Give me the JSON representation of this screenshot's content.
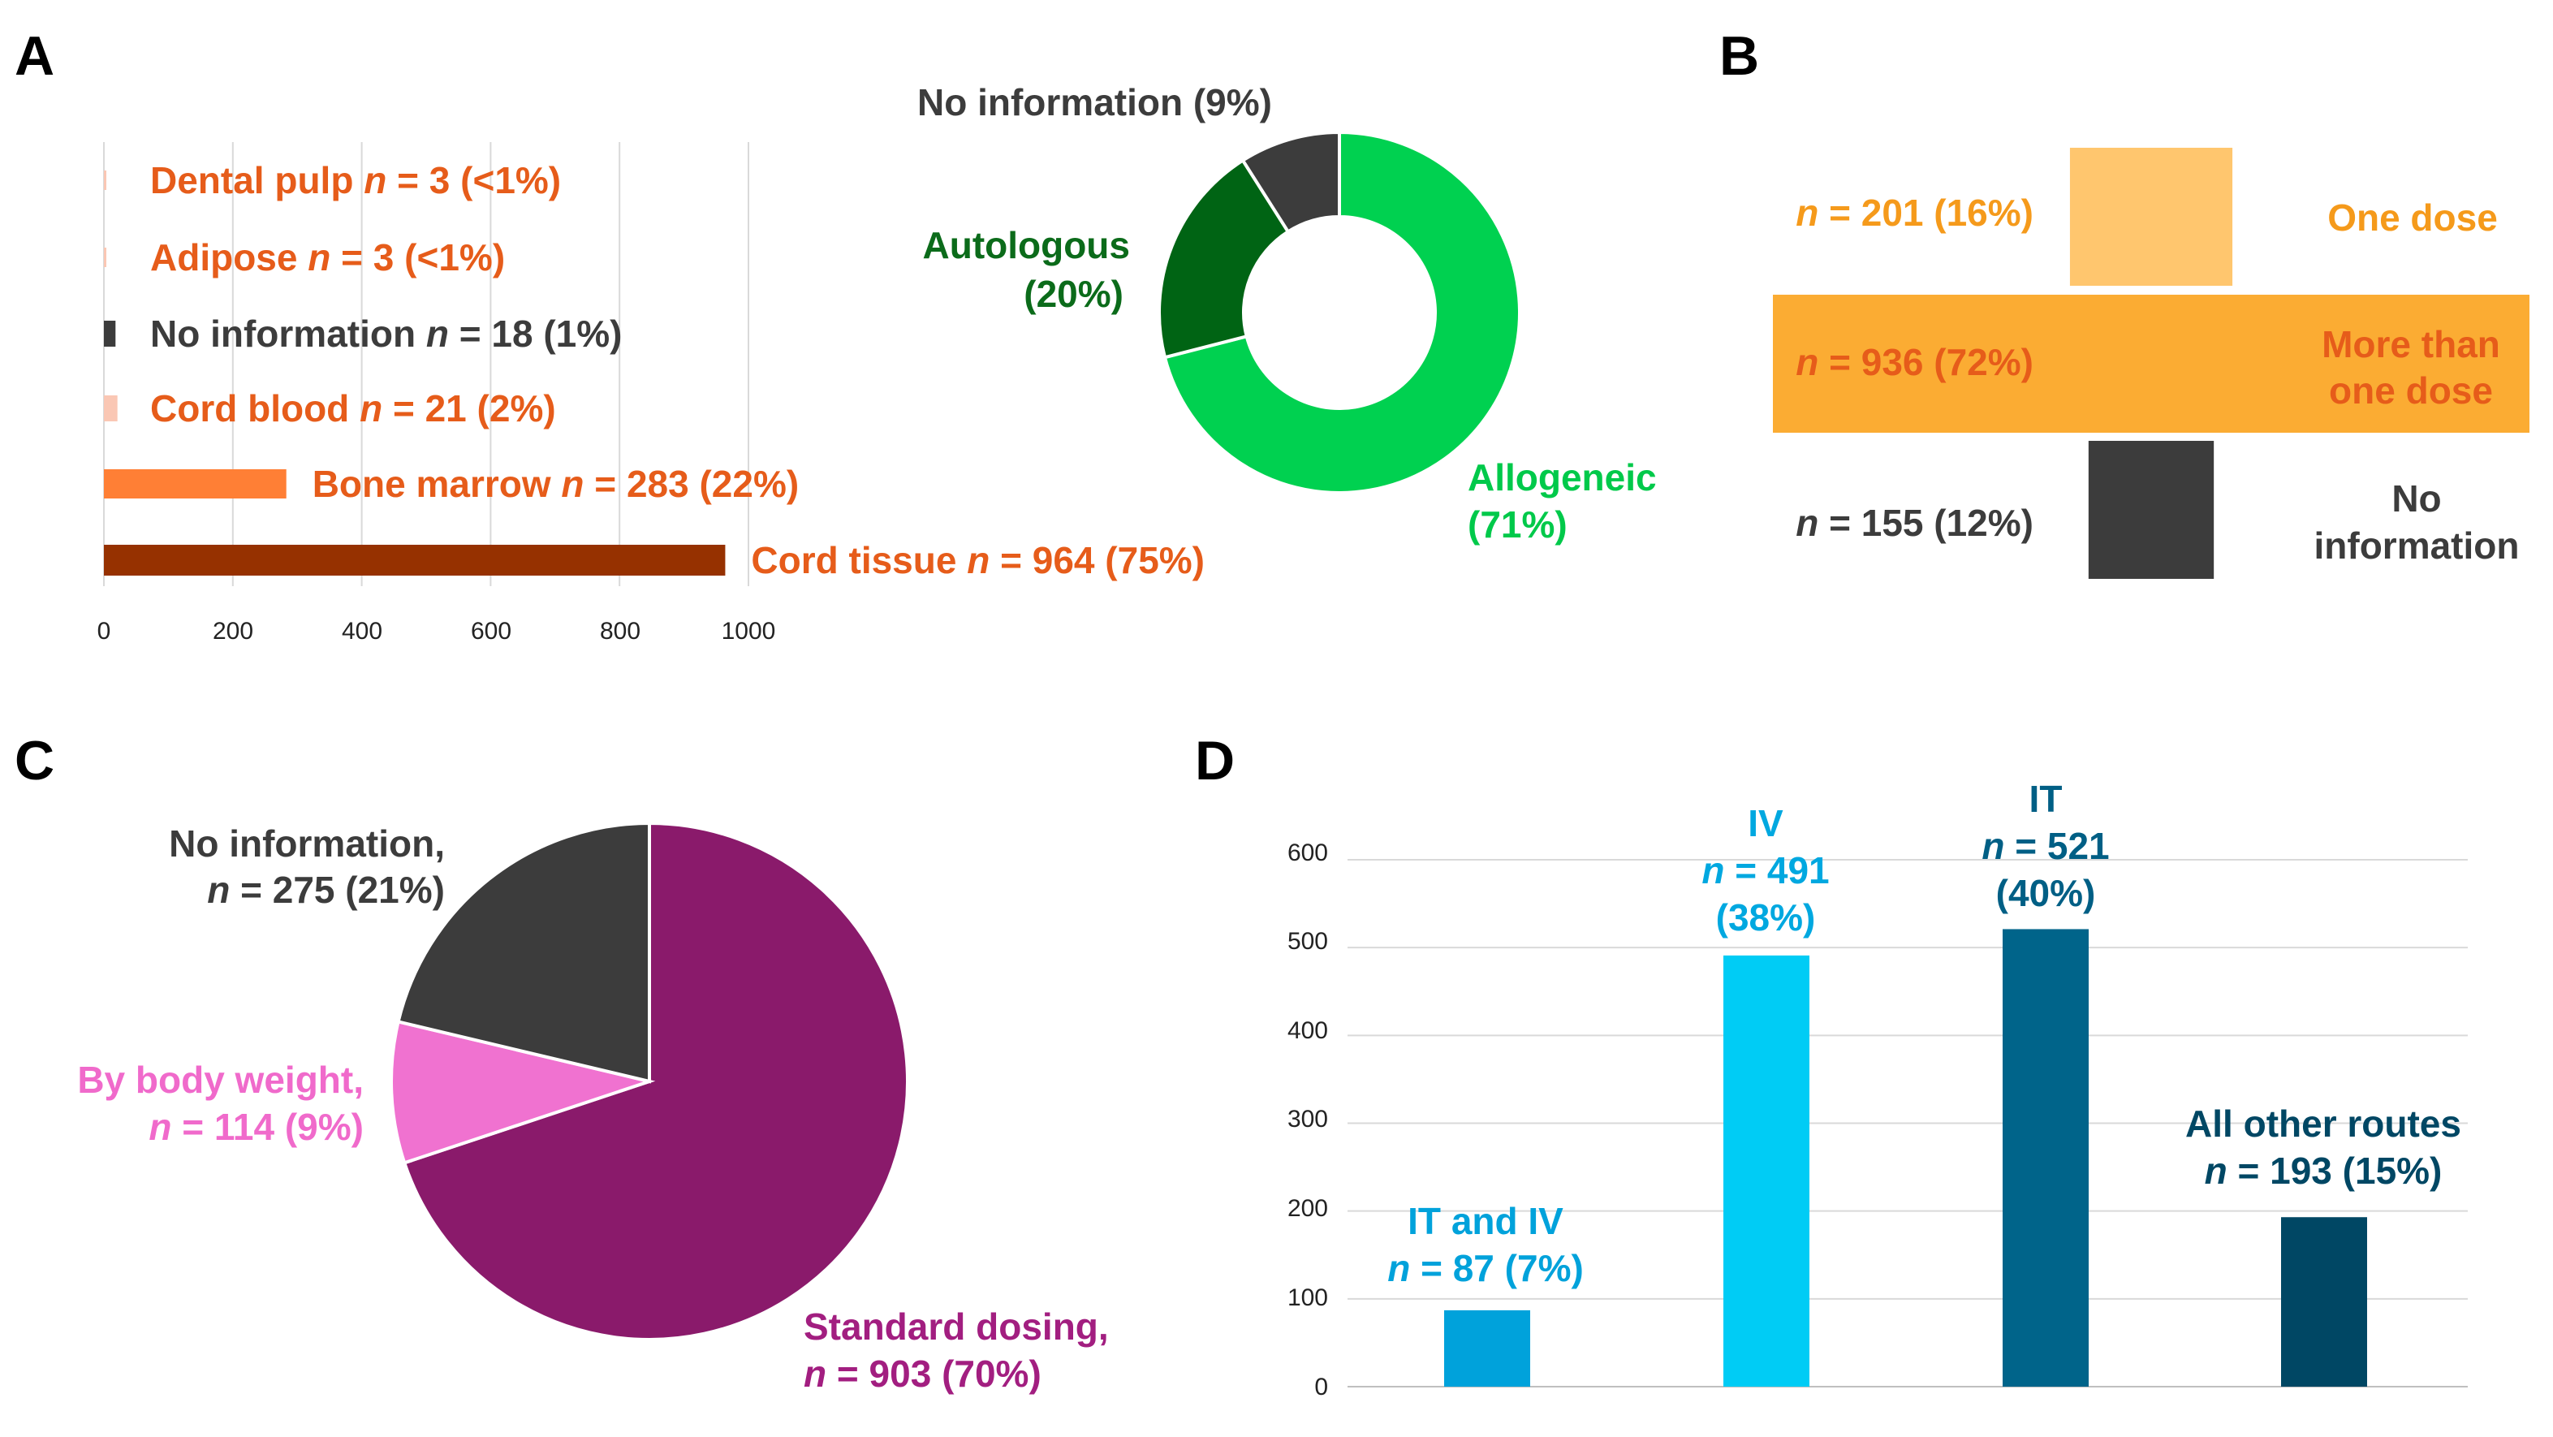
{
  "panel_letters": [
    "A",
    "B",
    "C",
    "D"
  ],
  "colors": {
    "orange_text": "#E65C1A",
    "dark_text": "#3C3C3C",
    "green_light": "#00D150",
    "green_mid": "#00B247",
    "green_dark": "#006414",
    "gray_dark": "#3C3C3C",
    "amber_light": "#FFC66E",
    "amber": "#FBAC33",
    "amber_text": "#F59A1B",
    "magenta": "#8A1A6B",
    "pink": "#F072D0",
    "blue_mid": "#00A2DB",
    "cyan": "#00CCF5",
    "teal": "#00648A",
    "navy": "#004764"
  },
  "chart_data": [
    {
      "panel": "A",
      "type": "bar",
      "orientation": "horizontal",
      "categories": [
        "Dental pulp",
        "Adipose",
        "No information",
        "Cord blood",
        "Bone marrow",
        "Cord tissue"
      ],
      "values": [
        3,
        3,
        18,
        21,
        283,
        964
      ],
      "labels": [
        {
          "name": "Dental pulp",
          "n_prefix": "n",
          "rest": " = 3 (<1%)",
          "color": "#E65C1A",
          "bar_color": "#FAC7B4"
        },
        {
          "name": "Adipose",
          "n_prefix": "n",
          "rest": " = 3 (<1%)",
          "color": "#E65C1A",
          "bar_color": "#FAC7B4"
        },
        {
          "name": "No information",
          "n_prefix": "n",
          "rest": " = 18 (1%)",
          "color": "#3C3C3C",
          "bar_color": "#3C3C3C"
        },
        {
          "name": "Cord blood",
          "n_prefix": "n",
          "rest": " = 21 (2%)",
          "color": "#E65C1A",
          "bar_color": "#FAC7B4"
        },
        {
          "name": "Bone marrow",
          "n_prefix": "n",
          "rest": " = 283 (22%)",
          "color": "#E65C1A",
          "bar_color": "#FF7F35"
        },
        {
          "name": "Cord tissue",
          "n_prefix": "n",
          "rest": " = 964 (75%)",
          "color": "#E65C1A",
          "bar_color": "#963100"
        }
      ],
      "xlim": [
        0,
        1000
      ],
      "xticks": [
        "0",
        "200",
        "400",
        "600",
        "800",
        "1000"
      ],
      "grid": true
    },
    {
      "panel": "A",
      "type": "pie",
      "donut": true,
      "slices": [
        {
          "name": "Allogeneic",
          "pct_label": "(71%)",
          "value": 71,
          "color": "#00D150",
          "text_color": "#00C94A"
        },
        {
          "name": "Autologous",
          "pct_label": "(20%)",
          "value": 20,
          "color": "#006414",
          "text_color": "#0B6B1A"
        },
        {
          "name": "No information (9%)",
          "pct_label": "",
          "value": 9,
          "color": "#3C3C3C",
          "text_color": "#3C3C3C"
        }
      ]
    },
    {
      "panel": "B",
      "type": "bar",
      "orientation": "horizontal",
      "style": "funnel",
      "rows": [
        {
          "name_lines": [
            "One dose"
          ],
          "n_prefix": "n",
          "rest": " = 201 (16%)",
          "value": 201,
          "bar_color": "#FFC66E",
          "count_color": "#F59A1B",
          "name_color": "#F59A1B"
        },
        {
          "name_lines": [
            "More than",
            "one dose"
          ],
          "n_prefix": "n",
          "rest": " = 936 (72%)",
          "value": 936,
          "bar_color": "#FBAC33",
          "count_color": "#E65C1A",
          "name_color": "#E65C1A"
        },
        {
          "name_lines": [
            "No",
            "information"
          ],
          "n_prefix": "n",
          "rest": " = 155 (12%)",
          "value": 155,
          "bar_color": "#3C3C3C",
          "count_color": "#3C3C3C",
          "name_color": "#3C3C3C"
        }
      ]
    },
    {
      "panel": "C",
      "type": "pie",
      "slices": [
        {
          "name": "Standard dosing,",
          "n_prefix": "n",
          "rest": " = 903 (70%)",
          "value": 903,
          "color": "#8A1A6B",
          "text_color": "#A21E80"
        },
        {
          "name": "By body weight,",
          "n_prefix": "n",
          "rest": " = 114 (9%)",
          "value": 114,
          "color": "#F072D0",
          "text_color": "#F06ACB"
        },
        {
          "name": "No information,",
          "n_prefix": "n",
          "rest": " = 275 (21%)",
          "value": 275,
          "color": "#3C3C3C",
          "text_color": "#3C3C3C"
        }
      ]
    },
    {
      "panel": "D",
      "type": "bar",
      "categories": [
        "IT and IV",
        "IV",
        "IT",
        "All other routes"
      ],
      "values": [
        87,
        491,
        521,
        193
      ],
      "labels": [
        {
          "name": "IT and IV",
          "n_prefix": "n",
          "rest": " = 87 (7%)",
          "pct": "",
          "color": "#00A2DB"
        },
        {
          "name": "IV",
          "n_prefix": "n",
          "rest": " = 491",
          "pct": "(38%)",
          "color": "#00A8E0"
        },
        {
          "name": "IT",
          "n_prefix": "n",
          "rest": " = 521",
          "pct": "(40%)",
          "color": "#005F85"
        },
        {
          "name": "All other routes",
          "n_prefix": "n",
          "rest": " = 193 (15%)",
          "pct": "",
          "color": "#004764"
        }
      ],
      "bar_colors": [
        "#00A2DB",
        "#00CCF5",
        "#00648A",
        "#004764"
      ],
      "ylim": [
        0,
        600
      ],
      "yticks": [
        "0",
        "100",
        "200",
        "300",
        "400",
        "500",
        "600"
      ],
      "grid": true
    }
  ]
}
